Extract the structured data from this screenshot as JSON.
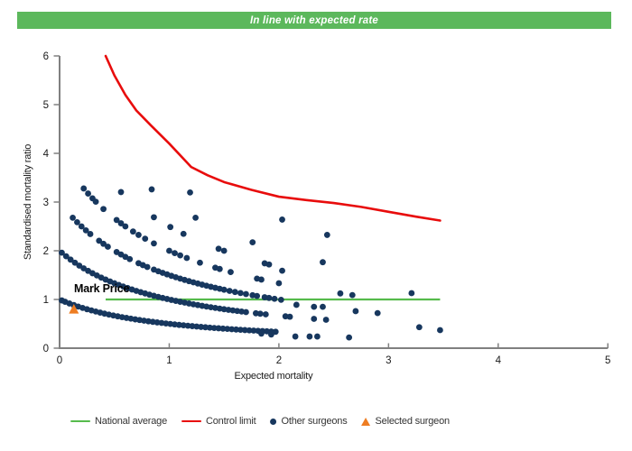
{
  "banner": {
    "title": "In line with expected rate",
    "bg_color": "#5CB85C",
    "text_color": "#FFFFFF"
  },
  "chart_data": {
    "type": "scatter",
    "subtype": "funnel-plot-smr",
    "xlabel": "Expected mortality",
    "ylabel": "Standardised mortality ratio",
    "xlim": [
      0,
      5
    ],
    "ylim": [
      0,
      6
    ],
    "x_ticks": [
      0,
      1,
      2,
      3,
      4,
      5
    ],
    "y_ticks": [
      0,
      1,
      2,
      3,
      4,
      5,
      6
    ],
    "grid": false,
    "axis_color": "#808080",
    "tick_label_color": "#1a1a1a",
    "national_average": {
      "value": 1.0,
      "x_start": 0.42,
      "x_end": 3.47,
      "color": "#56BB4C"
    },
    "control_limit": {
      "color": "#E80C0C",
      "points": [
        [
          0.42,
          6.0
        ],
        [
          0.5,
          5.6
        ],
        [
          0.6,
          5.2
        ],
        [
          0.7,
          4.88
        ],
        [
          0.83,
          4.58
        ],
        [
          1.0,
          4.2
        ],
        [
          1.2,
          3.72
        ],
        [
          1.35,
          3.55
        ],
        [
          1.5,
          3.41
        ],
        [
          1.75,
          3.25
        ],
        [
          2.0,
          3.11
        ],
        [
          2.25,
          3.04
        ],
        [
          2.5,
          2.98
        ],
        [
          2.75,
          2.9
        ],
        [
          3.0,
          2.8
        ],
        [
          3.25,
          2.7
        ],
        [
          3.47,
          2.62
        ]
      ]
    },
    "selected_surgeon": {
      "name": "Mark Price",
      "expected": 0.13,
      "smr": 0.8,
      "color": "#EE7D22"
    },
    "other_surgeons": {
      "color": "#17375E",
      "formula": "smr = deaths / (1 + expected)",
      "arcs": [
        {
          "deaths": 1,
          "expected": [
            0.02,
            0.05,
            0.09,
            0.13,
            0.17,
            0.21,
            0.25,
            0.29,
            0.33,
            0.37,
            0.41,
            0.45,
            0.49,
            0.53,
            0.57,
            0.61,
            0.65,
            0.69,
            0.73,
            0.77,
            0.81,
            0.85,
            0.89,
            0.93,
            0.97,
            1.01,
            1.05,
            1.09,
            1.13,
            1.17,
            1.21,
            1.25,
            1.29,
            1.33,
            1.37,
            1.41,
            1.45,
            1.49,
            1.53,
            1.57,
            1.61,
            1.65,
            1.69,
            1.73,
            1.77,
            1.81,
            1.85,
            1.89,
            1.93,
            1.97
          ]
        },
        {
          "deaths": 2,
          "expected": [
            0.02,
            0.06,
            0.1,
            0.14,
            0.18,
            0.22,
            0.26,
            0.3,
            0.34,
            0.38,
            0.42,
            0.46,
            0.5,
            0.54,
            0.58,
            0.62,
            0.66,
            0.7,
            0.74,
            0.78,
            0.82,
            0.86,
            0.9,
            0.94,
            0.98,
            1.02,
            1.06,
            1.1,
            1.14,
            1.18,
            1.22,
            1.26,
            1.3,
            1.34,
            1.38,
            1.42,
            1.46,
            1.5,
            1.54,
            1.58,
            1.62,
            1.66,
            1.7,
            1.79,
            1.83,
            1.88,
            2.06,
            2.1,
            2.32,
            2.43
          ]
        },
        {
          "deaths": 3,
          "expected": [
            0.12,
            0.16,
            0.2,
            0.24,
            0.28,
            0.36,
            0.4,
            0.44,
            0.52,
            0.56,
            0.6,
            0.64,
            0.72,
            0.76,
            0.8,
            0.86,
            0.9,
            0.94,
            0.98,
            1.02,
            1.06,
            1.1,
            1.14,
            1.18,
            1.22,
            1.26,
            1.3,
            1.34,
            1.38,
            1.42,
            1.46,
            1.5,
            1.55,
            1.6,
            1.65,
            1.7,
            1.76,
            1.8,
            1.87,
            1.91,
            1.96,
            2.02
          ]
        },
        {
          "deaths": 4,
          "expected": [
            0.22,
            0.26,
            0.3,
            0.33,
            0.4,
            0.52,
            0.56,
            0.6,
            0.67,
            0.72,
            0.78,
            0.86,
            1.0,
            1.05,
            1.1,
            1.16,
            1.28,
            1.42,
            1.46,
            1.56,
            1.8,
            1.84,
            2.0,
            2.56,
            2.67
          ]
        },
        {
          "deaths": 5,
          "expected": [
            0.56,
            0.86,
            1.01,
            1.13,
            1.45,
            1.5,
            1.87,
            1.91
          ]
        },
        {
          "deaths": 6,
          "expected": [
            0.84,
            1.24,
            1.76,
            2.4
          ]
        },
        {
          "deaths": 7,
          "expected": [
            1.19
          ]
        },
        {
          "deaths": 8,
          "expected": [
            2.03,
            2.44
          ]
        }
      ],
      "extra_points": [
        [
          2.32,
          0.85
        ],
        [
          2.4,
          0.85
        ],
        [
          2.16,
          0.89
        ],
        [
          1.84,
          0.3
        ],
        [
          1.93,
          0.28
        ],
        [
          2.15,
          0.24
        ],
        [
          2.28,
          0.24
        ],
        [
          2.35,
          0.24
        ],
        [
          2.64,
          0.22
        ],
        [
          2.7,
          0.76
        ],
        [
          2.9,
          0.72
        ],
        [
          3.21,
          1.13
        ],
        [
          3.28,
          0.43
        ],
        [
          3.47,
          0.37
        ],
        [
          2.03,
          1.59
        ]
      ]
    },
    "legend": [
      {
        "label": "National average",
        "marker": "line",
        "color": "#56BB4C"
      },
      {
        "label": "Control limit",
        "marker": "line",
        "color": "#E80C0C"
      },
      {
        "label": "Other surgeons",
        "marker": "dot",
        "color": "#17375E"
      },
      {
        "label": "Selected surgeon",
        "marker": "triangle",
        "color": "#EE7D22"
      }
    ]
  }
}
